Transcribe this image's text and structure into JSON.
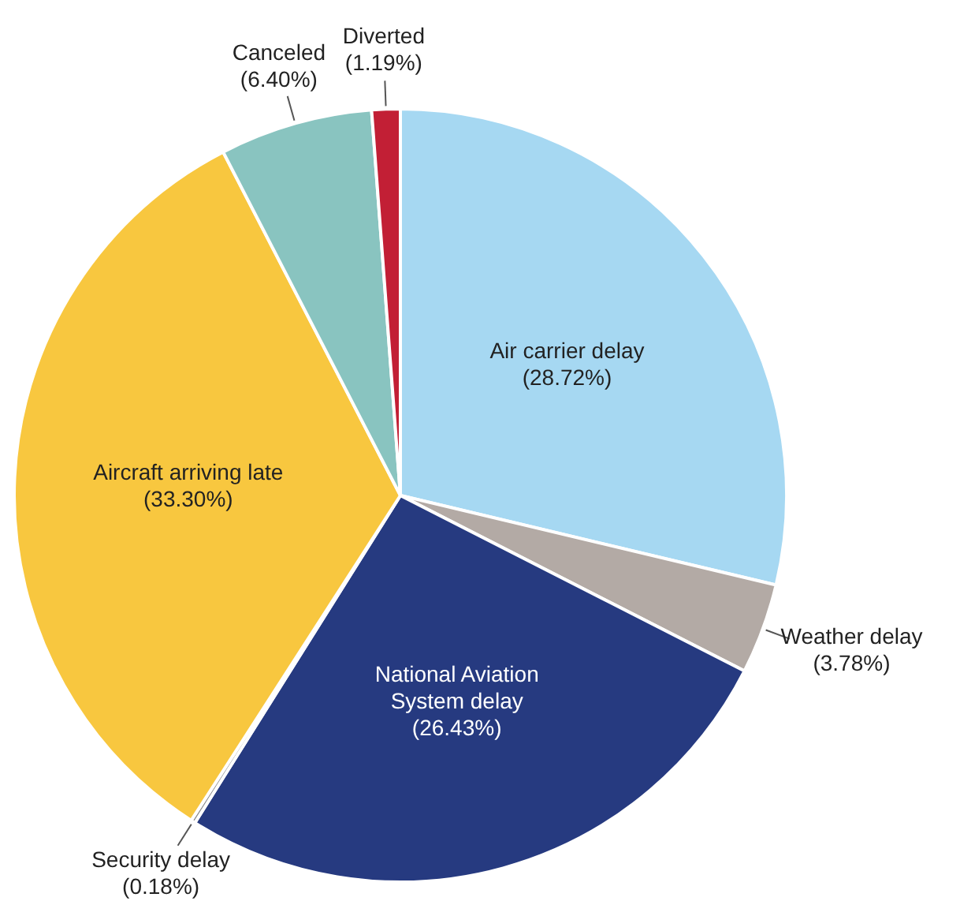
{
  "chart_data": {
    "type": "pie",
    "categories": [
      "Air carrier delay",
      "Weather delay",
      "National Aviation System delay",
      "Security delay",
      "Aircraft arriving late",
      "Canceled",
      "Diverted"
    ],
    "values": [
      28.72,
      3.78,
      26.43,
      0.18,
      33.3,
      6.4,
      1.19
    ],
    "colors": [
      "#a6d8f2",
      "#b3aaa5",
      "#263a80",
      "#8a8a8a",
      "#f8c73f",
      "#89c4c0",
      "#c21f35"
    ],
    "value_labels": [
      "(28.72%)",
      "(3.78%)",
      "(26.43%)",
      "(0.18%)",
      "(33.30%)",
      "(6.40%)",
      "(1.19%)"
    ]
  }
}
